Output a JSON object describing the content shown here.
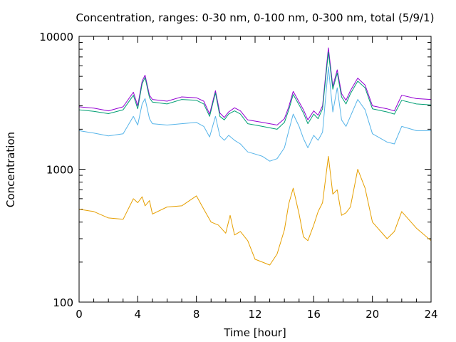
{
  "chart_data": {
    "type": "line",
    "title": "Concentration, ranges: 0-30 nm, 0-100 nm, 0-300 nm, total (5/9/1)",
    "xlabel": "Time [hour]",
    "ylabel": "Concentration",
    "xlim": [
      0,
      24
    ],
    "ylim": [
      100,
      10000
    ],
    "yscale": "log",
    "x_ticks": [
      "0",
      "4",
      "8",
      "12",
      "16",
      "20",
      "24"
    ],
    "x_tick_values": [
      0,
      4,
      8,
      12,
      16,
      20,
      24
    ],
    "y_ticks": [
      "100",
      "1000",
      "10000"
    ],
    "y_tick_values": [
      100,
      1000,
      10000
    ],
    "grid": false,
    "legend": "none",
    "series": [
      {
        "color": "#9400d3",
        "points": [
          [
            0,
            2950
          ],
          [
            1,
            2880
          ],
          [
            2,
            2750
          ],
          [
            3,
            2950
          ],
          [
            3.7,
            3800
          ],
          [
            4,
            3000
          ],
          [
            4.3,
            4600
          ],
          [
            4.5,
            5100
          ],
          [
            4.8,
            3600
          ],
          [
            5,
            3350
          ],
          [
            6,
            3250
          ],
          [
            7,
            3500
          ],
          [
            8,
            3450
          ],
          [
            8.5,
            3250
          ],
          [
            8.9,
            2600
          ],
          [
            9.3,
            3900
          ],
          [
            9.6,
            2650
          ],
          [
            9.9,
            2450
          ],
          [
            10.2,
            2700
          ],
          [
            10.6,
            2900
          ],
          [
            11,
            2750
          ],
          [
            11.5,
            2350
          ],
          [
            12,
            2300
          ],
          [
            12.5,
            2250
          ],
          [
            13,
            2200
          ],
          [
            13.5,
            2150
          ],
          [
            14,
            2400
          ],
          [
            14.3,
            2950
          ],
          [
            14.6,
            3850
          ],
          [
            15,
            3200
          ],
          [
            15.3,
            2800
          ],
          [
            15.6,
            2350
          ],
          [
            16,
            2750
          ],
          [
            16.3,
            2550
          ],
          [
            16.6,
            3000
          ],
          [
            17,
            8200
          ],
          [
            17.3,
            4200
          ],
          [
            17.6,
            5600
          ],
          [
            17.9,
            3700
          ],
          [
            18.2,
            3300
          ],
          [
            18.5,
            3900
          ],
          [
            19,
            4850
          ],
          [
            19.5,
            4300
          ],
          [
            20,
            3000
          ],
          [
            21,
            2850
          ],
          [
            21.5,
            2750
          ],
          [
            22,
            3600
          ],
          [
            23,
            3400
          ],
          [
            24,
            3350
          ]
        ]
      },
      {
        "color": "#009e73",
        "points": [
          [
            0,
            2800
          ],
          [
            1,
            2730
          ],
          [
            2,
            2620
          ],
          [
            3,
            2800
          ],
          [
            3.7,
            3600
          ],
          [
            4,
            2850
          ],
          [
            4.3,
            4400
          ],
          [
            4.5,
            4900
          ],
          [
            4.8,
            3450
          ],
          [
            5,
            3200
          ],
          [
            6,
            3100
          ],
          [
            7,
            3350
          ],
          [
            8,
            3300
          ],
          [
            8.5,
            3100
          ],
          [
            8.9,
            2500
          ],
          [
            9.3,
            3750
          ],
          [
            9.6,
            2500
          ],
          [
            9.9,
            2350
          ],
          [
            10.2,
            2600
          ],
          [
            10.6,
            2750
          ],
          [
            11,
            2600
          ],
          [
            11.5,
            2200
          ],
          [
            12,
            2150
          ],
          [
            12.5,
            2100
          ],
          [
            13,
            2050
          ],
          [
            13.5,
            2000
          ],
          [
            14,
            2250
          ],
          [
            14.3,
            2800
          ],
          [
            14.6,
            3650
          ],
          [
            15,
            3050
          ],
          [
            15.3,
            2650
          ],
          [
            15.6,
            2200
          ],
          [
            16,
            2600
          ],
          [
            16.3,
            2400
          ],
          [
            16.6,
            2850
          ],
          [
            17,
            7600
          ],
          [
            17.3,
            4000
          ],
          [
            17.6,
            5300
          ],
          [
            17.9,
            3500
          ],
          [
            18.2,
            3100
          ],
          [
            18.5,
            3700
          ],
          [
            19,
            4600
          ],
          [
            19.5,
            4100
          ],
          [
            20,
            2850
          ],
          [
            21,
            2700
          ],
          [
            21.5,
            2600
          ],
          [
            22,
            3300
          ],
          [
            23,
            3100
          ],
          [
            24,
            3050
          ]
        ]
      },
      {
        "color": "#56b4e9",
        "points": [
          [
            0,
            1950
          ],
          [
            1,
            1870
          ],
          [
            2,
            1780
          ],
          [
            3,
            1850
          ],
          [
            3.7,
            2500
          ],
          [
            4,
            2150
          ],
          [
            4.3,
            3100
          ],
          [
            4.5,
            3400
          ],
          [
            4.8,
            2400
          ],
          [
            5,
            2200
          ],
          [
            6,
            2150
          ],
          [
            7,
            2200
          ],
          [
            8,
            2250
          ],
          [
            8.5,
            2100
          ],
          [
            8.9,
            1750
          ],
          [
            9.3,
            2500
          ],
          [
            9.6,
            1780
          ],
          [
            9.9,
            1650
          ],
          [
            10.2,
            1800
          ],
          [
            10.6,
            1650
          ],
          [
            11,
            1550
          ],
          [
            11.5,
            1350
          ],
          [
            12,
            1300
          ],
          [
            12.5,
            1250
          ],
          [
            13,
            1150
          ],
          [
            13.5,
            1200
          ],
          [
            14,
            1450
          ],
          [
            14.3,
            1950
          ],
          [
            14.6,
            2600
          ],
          [
            15,
            2100
          ],
          [
            15.3,
            1700
          ],
          [
            15.6,
            1450
          ],
          [
            16,
            1800
          ],
          [
            16.3,
            1650
          ],
          [
            16.6,
            1900
          ],
          [
            17,
            5900
          ],
          [
            17.3,
            2700
          ],
          [
            17.6,
            4100
          ],
          [
            17.9,
            2350
          ],
          [
            18.2,
            2100
          ],
          [
            18.5,
            2500
          ],
          [
            19,
            3350
          ],
          [
            19.5,
            2800
          ],
          [
            20,
            1850
          ],
          [
            21,
            1600
          ],
          [
            21.5,
            1550
          ],
          [
            22,
            2100
          ],
          [
            23,
            1950
          ],
          [
            24,
            1950
          ]
        ]
      },
      {
        "color": "#e69f00",
        "points": [
          [
            0,
            500
          ],
          [
            1,
            480
          ],
          [
            2,
            430
          ],
          [
            3,
            420
          ],
          [
            3.7,
            600
          ],
          [
            4,
            560
          ],
          [
            4.3,
            620
          ],
          [
            4.5,
            530
          ],
          [
            4.8,
            580
          ],
          [
            5,
            460
          ],
          [
            6,
            520
          ],
          [
            7,
            530
          ],
          [
            8,
            630
          ],
          [
            8.5,
            500
          ],
          [
            9,
            400
          ],
          [
            9.5,
            380
          ],
          [
            10,
            330
          ],
          [
            10.3,
            450
          ],
          [
            10.6,
            320
          ],
          [
            11,
            340
          ],
          [
            11.5,
            290
          ],
          [
            12,
            210
          ],
          [
            12.5,
            200
          ],
          [
            13,
            190
          ],
          [
            13.5,
            230
          ],
          [
            14,
            350
          ],
          [
            14.3,
            550
          ],
          [
            14.6,
            720
          ],
          [
            15,
            460
          ],
          [
            15.3,
            310
          ],
          [
            15.6,
            290
          ],
          [
            16,
            380
          ],
          [
            16.3,
            480
          ],
          [
            16.6,
            560
          ],
          [
            17,
            1250
          ],
          [
            17.3,
            650
          ],
          [
            17.6,
            700
          ],
          [
            17.9,
            450
          ],
          [
            18.2,
            470
          ],
          [
            18.5,
            520
          ],
          [
            19,
            1000
          ],
          [
            19.5,
            720
          ],
          [
            20,
            400
          ],
          [
            21,
            300
          ],
          [
            21.5,
            340
          ],
          [
            22,
            480
          ],
          [
            23,
            360
          ],
          [
            24,
            290
          ]
        ]
      }
    ]
  }
}
